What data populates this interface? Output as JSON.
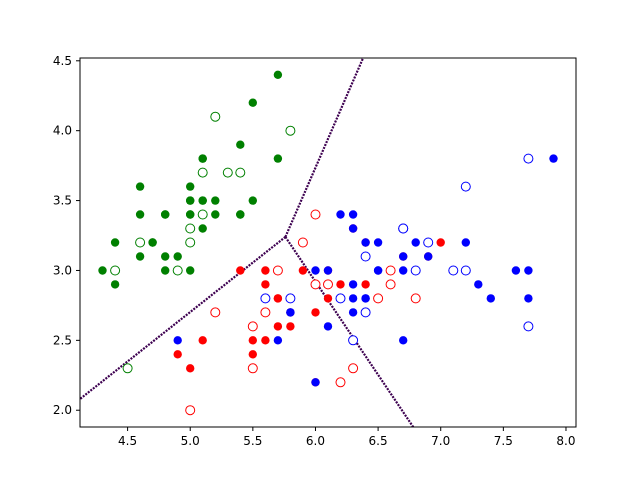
{
  "chart_data": {
    "type": "scatter",
    "title": "",
    "xlabel": "",
    "ylabel": "",
    "xlim": [
      4.12,
      8.08
    ],
    "ylim": [
      1.88,
      4.52
    ],
    "x_ticks": [
      {
        "value": 4.5,
        "label": "4.5"
      },
      {
        "value": 5.0,
        "label": "5.0"
      },
      {
        "value": 5.5,
        "label": "5.5"
      },
      {
        "value": 6.0,
        "label": "6.0"
      },
      {
        "value": 6.5,
        "label": "6.5"
      },
      {
        "value": 7.0,
        "label": "7.0"
      },
      {
        "value": 7.5,
        "label": "7.5"
      },
      {
        "value": 8.0,
        "label": "8.0"
      }
    ],
    "y_ticks": [
      {
        "value": 2.0,
        "label": "2.0"
      },
      {
        "value": 2.5,
        "label": "2.5"
      },
      {
        "value": 3.0,
        "label": "3.0"
      },
      {
        "value": 3.5,
        "label": "3.5"
      },
      {
        "value": 4.0,
        "label": "4.0"
      },
      {
        "value": 4.5,
        "label": "4.5"
      }
    ],
    "grid": false,
    "legend": "none",
    "boundary_color": "#3d0050",
    "boundaries": [
      {
        "points": [
          [
            5.76,
            3.24
          ],
          [
            4.12,
            2.08
          ]
        ]
      },
      {
        "points": [
          [
            5.76,
            3.24
          ],
          [
            6.38,
            4.52
          ]
        ]
      },
      {
        "points": [
          [
            5.76,
            3.24
          ],
          [
            6.78,
            1.88
          ]
        ]
      }
    ],
    "series": [
      {
        "color": "#008000",
        "filled": [
          [
            4.3,
            3.0
          ],
          [
            4.4,
            2.9
          ],
          [
            4.4,
            3.2
          ],
          [
            4.6,
            3.1
          ],
          [
            4.6,
            3.4
          ],
          [
            4.6,
            3.6
          ],
          [
            4.7,
            3.2
          ],
          [
            4.7,
            3.2
          ],
          [
            4.8,
            3.0
          ],
          [
            4.8,
            3.1
          ],
          [
            4.8,
            3.4
          ],
          [
            4.8,
            3.4
          ],
          [
            4.9,
            3.1
          ],
          [
            5.0,
            3.0
          ],
          [
            5.0,
            3.4
          ],
          [
            5.0,
            3.4
          ],
          [
            5.0,
            3.5
          ],
          [
            5.0,
            3.5
          ],
          [
            5.0,
            3.6
          ],
          [
            5.1,
            3.3
          ],
          [
            5.1,
            3.5
          ],
          [
            5.1,
            3.5
          ],
          [
            5.1,
            3.8
          ],
          [
            5.1,
            3.8
          ],
          [
            5.2,
            3.4
          ],
          [
            5.2,
            3.5
          ],
          [
            5.4,
            3.4
          ],
          [
            5.4,
            3.4
          ],
          [
            5.4,
            3.9
          ],
          [
            5.5,
            3.5
          ],
          [
            5.5,
            4.2
          ],
          [
            5.7,
            3.8
          ],
          [
            5.7,
            4.4
          ]
        ],
        "hollow": [
          [
            4.4,
            3.0
          ],
          [
            4.5,
            2.3
          ],
          [
            4.6,
            3.2
          ],
          [
            4.9,
            3.0
          ],
          [
            5.0,
            3.2
          ],
          [
            5.0,
            3.3
          ],
          [
            5.1,
            3.4
          ],
          [
            5.1,
            3.7
          ],
          [
            5.2,
            4.1
          ],
          [
            5.3,
            3.7
          ],
          [
            5.4,
            3.7
          ],
          [
            5.8,
            4.0
          ]
        ]
      },
      {
        "color": "#ff0000",
        "filled": [
          [
            4.9,
            2.4
          ],
          [
            5.0,
            2.3
          ],
          [
            5.1,
            2.5
          ],
          [
            5.4,
            3.0
          ],
          [
            5.5,
            2.4
          ],
          [
            5.5,
            2.5
          ],
          [
            5.6,
            2.5
          ],
          [
            5.6,
            2.9
          ],
          [
            5.6,
            3.0
          ],
          [
            5.7,
            2.6
          ],
          [
            5.7,
            2.8
          ],
          [
            5.7,
            2.8
          ],
          [
            5.8,
            2.6
          ],
          [
            5.8,
            2.7
          ],
          [
            5.9,
            3.0
          ],
          [
            6.0,
            2.2
          ],
          [
            6.0,
            2.7
          ],
          [
            6.1,
            2.8
          ],
          [
            6.1,
            3.0
          ],
          [
            6.2,
            2.9
          ],
          [
            6.3,
            2.5
          ],
          [
            6.3,
            3.3
          ],
          [
            6.4,
            2.9
          ],
          [
            6.4,
            3.2
          ],
          [
            6.7,
            3.1
          ],
          [
            6.9,
            3.1
          ],
          [
            7.0,
            3.2
          ]
        ],
        "hollow": [
          [
            5.0,
            2.0
          ],
          [
            5.2,
            2.7
          ],
          [
            5.5,
            2.3
          ],
          [
            5.5,
            2.6
          ],
          [
            5.6,
            2.7
          ],
          [
            5.7,
            3.0
          ],
          [
            5.9,
            3.2
          ],
          [
            6.0,
            2.9
          ],
          [
            6.0,
            3.4
          ],
          [
            6.1,
            2.9
          ],
          [
            6.2,
            2.2
          ],
          [
            6.3,
            2.3
          ],
          [
            6.5,
            2.8
          ],
          [
            6.6,
            2.9
          ],
          [
            6.6,
            3.0
          ],
          [
            6.8,
            2.8
          ]
        ]
      },
      {
        "color": "#0000ff",
        "filled": [
          [
            4.9,
            2.5
          ],
          [
            5.7,
            2.5
          ],
          [
            5.8,
            2.7
          ],
          [
            5.8,
            2.7
          ],
          [
            6.0,
            3.0
          ],
          [
            6.0,
            2.2
          ],
          [
            6.1,
            2.6
          ],
          [
            6.1,
            3.0
          ],
          [
            6.2,
            3.4
          ],
          [
            6.3,
            2.7
          ],
          [
            6.3,
            2.8
          ],
          [
            6.3,
            2.9
          ],
          [
            6.3,
            3.3
          ],
          [
            6.3,
            3.4
          ],
          [
            6.4,
            2.8
          ],
          [
            6.4,
            2.8
          ],
          [
            6.4,
            3.2
          ],
          [
            6.5,
            3.0
          ],
          [
            6.5,
            3.0
          ],
          [
            6.5,
            3.2
          ],
          [
            6.7,
            2.5
          ],
          [
            6.7,
            3.0
          ],
          [
            6.7,
            3.1
          ],
          [
            6.8,
            3.2
          ],
          [
            6.9,
            3.1
          ],
          [
            7.2,
            3.2
          ],
          [
            7.3,
            2.9
          ],
          [
            7.4,
            2.8
          ],
          [
            7.6,
            3.0
          ],
          [
            7.7,
            2.8
          ],
          [
            7.7,
            3.0
          ],
          [
            7.9,
            3.8
          ]
        ],
        "hollow": [
          [
            5.6,
            2.8
          ],
          [
            5.8,
            2.8
          ],
          [
            6.2,
            2.8
          ],
          [
            6.3,
            2.5
          ],
          [
            6.4,
            2.7
          ],
          [
            6.4,
            3.1
          ],
          [
            6.7,
            3.3
          ],
          [
            6.7,
            3.3
          ],
          [
            6.8,
            3.0
          ],
          [
            6.9,
            3.2
          ],
          [
            7.1,
            3.0
          ],
          [
            7.2,
            3.0
          ],
          [
            7.2,
            3.6
          ],
          [
            7.7,
            2.6
          ],
          [
            7.7,
            3.8
          ]
        ]
      }
    ]
  }
}
